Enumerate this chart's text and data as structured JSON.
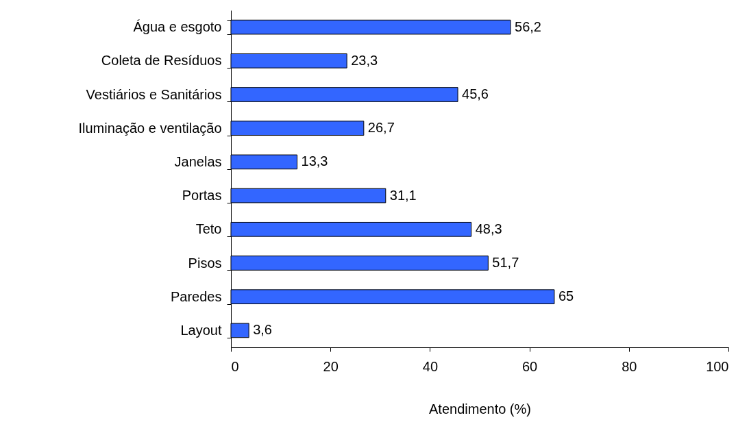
{
  "chart_data": {
    "type": "bar",
    "orientation": "horizontal",
    "xlabel": "Atendimento (%)",
    "categories": [
      "Água e esgoto",
      "Coleta de Resíduos",
      "Vestiários e Sanitários",
      "Iluminação e ventilação",
      "Janelas",
      "Portas",
      "Teto",
      "Pisos",
      "Paredes",
      "Layout"
    ],
    "values": [
      56.2,
      23.3,
      45.6,
      26.7,
      13.3,
      31.1,
      48.3,
      51.7,
      65,
      3.6
    ],
    "value_labels": [
      "56,2",
      "23,3",
      "45,6",
      "26,7",
      "13,3",
      "31,1",
      "48,3",
      "51,7",
      "65",
      "3,6"
    ],
    "color": "#3366ff",
    "xlim": [
      0,
      100
    ],
    "xticks": [
      0,
      20,
      40,
      60,
      80,
      100
    ],
    "grid": false
  }
}
